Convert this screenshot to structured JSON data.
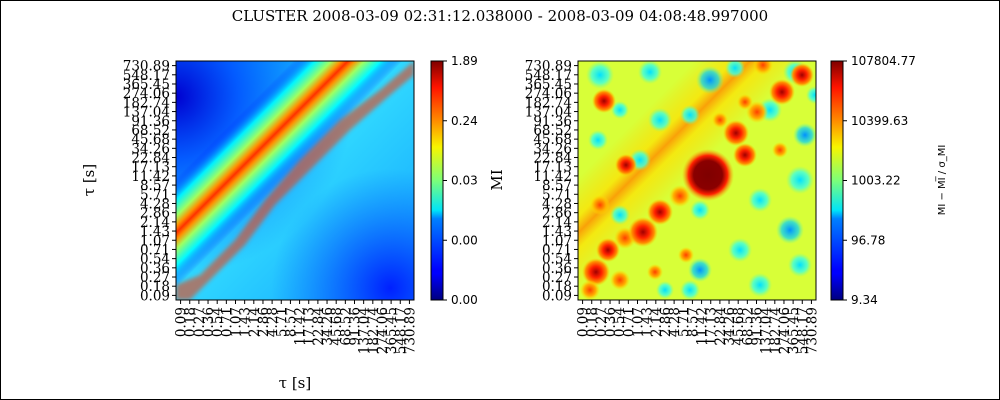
{
  "chart_data": [
    {
      "type": "heatmap",
      "title": "CLUSTER  2008-03-09 02:31:12.038000 - 2008-03-09 04:08:48.997000",
      "xlabel": "τ [s]",
      "ylabel": "τ [s]",
      "x_ticks": [
        "0.09",
        "0.18",
        "0.27",
        "0.36",
        "0.54",
        "0.71",
        "1.07",
        "1.43",
        "2.14",
        "2.86",
        "4.28",
        "5.71",
        "8.57",
        "11.42",
        "17.13",
        "22.84",
        "34.26",
        "45.68",
        "68.52",
        "91.36",
        "137.04",
        "182.74",
        "274.06",
        "365.45",
        "548.17",
        "730.89"
      ],
      "y_ticks": [
        "0.09",
        "0.18",
        "0.27",
        "0.36",
        "0.54",
        "0.71",
        "1.07",
        "1.43",
        "2.14",
        "2.86",
        "4.28",
        "5.71",
        "8.57",
        "11.42",
        "17.13",
        "22.84",
        "34.26",
        "45.68",
        "68.52",
        "91.36",
        "137.04",
        "182.74",
        "274.06",
        "365.45",
        "548.17",
        "730.89"
      ],
      "colorbar": {
        "label": "MI",
        "ticks": [
          "0.00",
          "0.00",
          "0.03",
          "0.24",
          "1.89"
        ],
        "colormap": "jet"
      },
      "description_of_values": "Symmetric mutual information matrix; maximum (~1.89) along the diagonal, decreasing away from it; low values (~0.00) in the top-left corner region."
    },
    {
      "type": "heatmap",
      "x_ticks": [
        "0.09",
        "0.18",
        "0.27",
        "0.36",
        "0.54",
        "0.71",
        "1.07",
        "1.43",
        "2.14",
        "2.86",
        "4.28",
        "5.71",
        "8.57",
        "11.42",
        "17.13",
        "22.84",
        "34.26",
        "45.68",
        "68.52",
        "91.36",
        "137.04",
        "182.74",
        "274.06",
        "365.45",
        "548.17",
        "730.89"
      ],
      "y_ticks": [
        "0.09",
        "0.18",
        "0.27",
        "0.36",
        "0.54",
        "0.71",
        "1.07",
        "1.43",
        "2.14",
        "2.86",
        "4.28",
        "5.71",
        "8.57",
        "11.42",
        "17.13",
        "22.84",
        "34.26",
        "45.68",
        "68.52",
        "91.36",
        "137.04",
        "182.74",
        "274.06",
        "365.45",
        "548.17",
        "730.89"
      ],
      "colorbar": {
        "label": "MI − MI̅ / σ_MI",
        "ticks": [
          "9.34",
          "96.78",
          "1003.22",
          "10399.63",
          "107804.77"
        ],
        "colormap": "jet",
        "scale": "log"
      },
      "highlights": [
        {
          "x": "17.13",
          "y": "17.13",
          "level": "max"
        },
        {
          "x": "2.14",
          "y": "2.14",
          "level": "high"
        },
        {
          "x": "2.86",
          "y": "2.86",
          "level": "high"
        },
        {
          "x": "0.36",
          "y": "0.36",
          "level": "high"
        },
        {
          "x": "68.52",
          "y": "68.52",
          "level": "high"
        },
        {
          "x": "274.06",
          "y": "274.06",
          "level": "high"
        },
        {
          "x": "0.27",
          "y": "274.06",
          "level": "high"
        },
        {
          "x": "0.71",
          "y": "11.42",
          "level": "high"
        },
        {
          "x": "45.68",
          "y": "22.84",
          "level": "high"
        }
      ]
    }
  ]
}
